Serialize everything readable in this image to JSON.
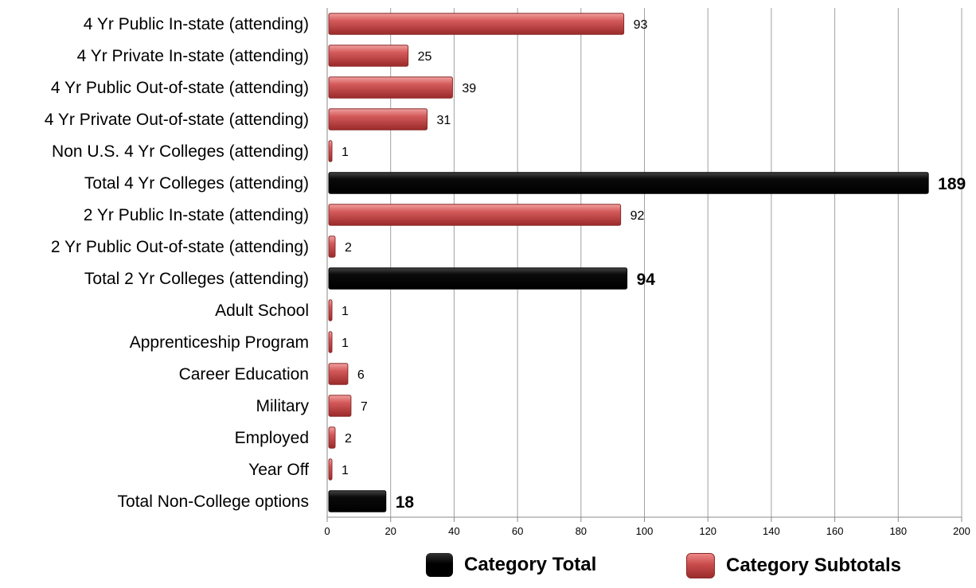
{
  "chart_data": {
    "type": "bar",
    "orientation": "horizontal",
    "categories": [
      "4 Yr Public In-state  (attending)",
      "4 Yr Private In-state (attending)",
      "4 Yr Public Out-of-state (attending)",
      "4 Yr Private Out-of-state (attending)",
      "Non U.S. 4 Yr Colleges (attending)",
      "Total 4 Yr Colleges (attending)",
      "2 Yr Public In-state (attending)",
      "2 Yr Public Out-of-state (attending)",
      "Total 2 Yr Colleges (attending)",
      "Adult School",
      "Apprenticeship Program",
      "Career Education",
      "Military",
      "Employed",
      "Year Off",
      "Total Non-College options"
    ],
    "values": [
      93,
      25,
      39,
      31,
      1,
      189,
      92,
      2,
      94,
      1,
      1,
      6,
      7,
      2,
      1,
      18
    ],
    "kinds": [
      "sub",
      "sub",
      "sub",
      "sub",
      "sub",
      "total",
      "sub",
      "sub",
      "total",
      "sub",
      "sub",
      "sub",
      "sub",
      "sub",
      "sub",
      "total"
    ],
    "xlim": [
      0,
      200
    ],
    "xticks": [
      0,
      20,
      40,
      60,
      80,
      100,
      120,
      140,
      160,
      180,
      200
    ],
    "grid": true,
    "legend_placement": "bottom",
    "legend": [
      {
        "key": "total",
        "label": "Category Total",
        "color": "#000000"
      },
      {
        "key": "sub",
        "label": "Category Subtotals",
        "color": "#c94b4b"
      }
    ],
    "title": "",
    "xlabel": "",
    "ylabel": ""
  }
}
